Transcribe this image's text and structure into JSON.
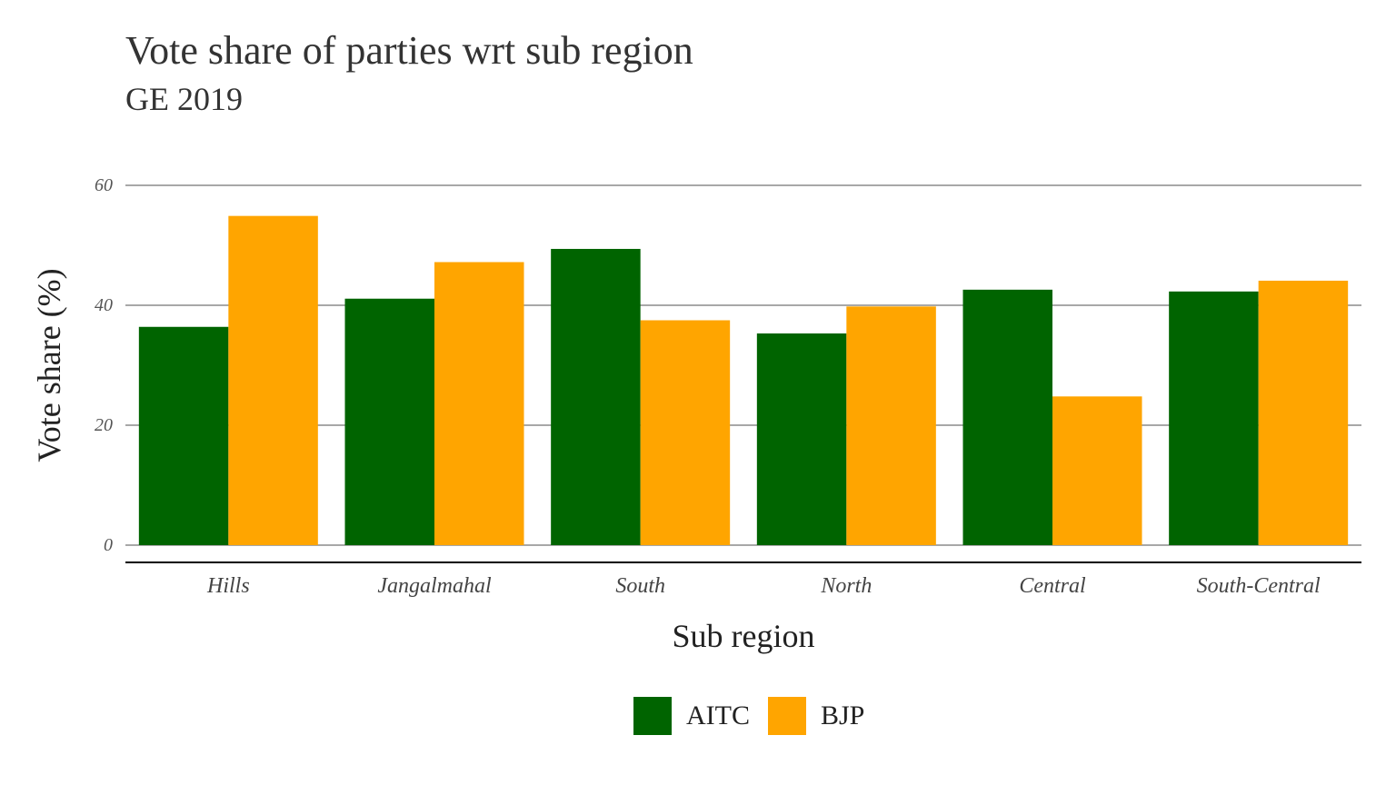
{
  "colors": {
    "AITC": "#006400",
    "BJP": "#FFA500"
  },
  "chart_data": {
    "type": "bar",
    "title": "Vote share of parties wrt sub region",
    "subtitle": "GE 2019",
    "xlabel": "Sub region",
    "ylabel": "Vote share (%)",
    "categories": [
      "Hills",
      "Jangalmahal",
      "South",
      "North",
      "Central",
      "South-Central"
    ],
    "series": [
      {
        "name": "AITC",
        "color": "#006400",
        "values": [
          36.4,
          41.1,
          49.4,
          35.3,
          42.6,
          42.3
        ]
      },
      {
        "name": "BJP",
        "color": "#FFA500",
        "values": [
          54.9,
          47.2,
          37.5,
          39.8,
          24.8,
          44.1
        ]
      }
    ],
    "ylim": [
      0,
      60
    ],
    "yticks": [
      "0",
      "20",
      "40",
      "60"
    ],
    "grid": "horizontal",
    "legend": "bottom"
  }
}
